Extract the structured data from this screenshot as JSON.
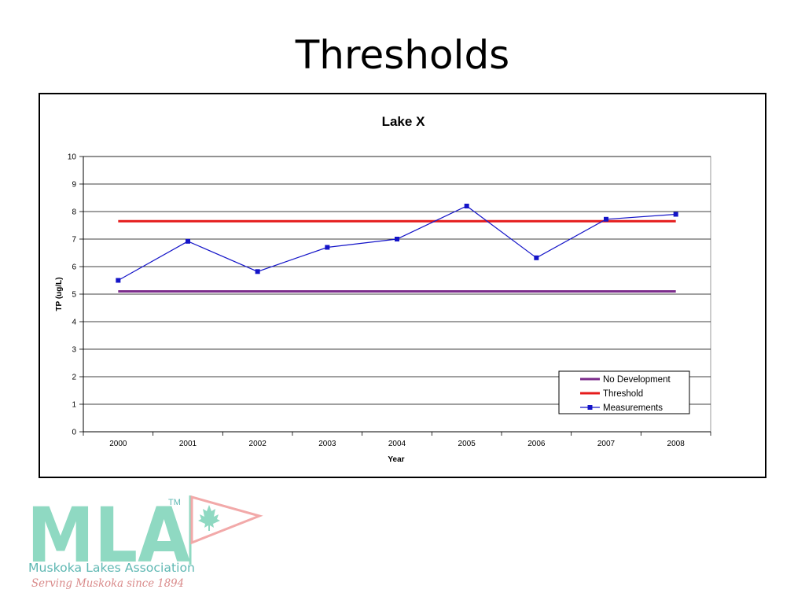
{
  "slide": {
    "title": "Thresholds"
  },
  "chart_data": {
    "type": "line",
    "title": "Lake X",
    "xlabel": "Year",
    "ylabel": "TP (ug/L)",
    "categories": [
      "2000",
      "2001",
      "2002",
      "2003",
      "2004",
      "2005",
      "2006",
      "2007",
      "2008"
    ],
    "yticks": [
      "0",
      "1",
      "2",
      "3",
      "4",
      "5",
      "6",
      "7",
      "8",
      "9",
      "10"
    ],
    "ylim": [
      0,
      10
    ],
    "grid": true,
    "legend": "bottom-right",
    "series": [
      {
        "name": "No Development",
        "color": "#7B2C8B",
        "marker": "none",
        "values": [
          5.1,
          5.1,
          5.1,
          5.1,
          5.1,
          5.1,
          5.1,
          5.1,
          5.1
        ]
      },
      {
        "name": "Threshold",
        "color": "#E51B1B",
        "marker": "none",
        "values": [
          7.65,
          7.65,
          7.65,
          7.65,
          7.65,
          7.65,
          7.65,
          7.65,
          7.65
        ]
      },
      {
        "name": "Measurements",
        "color": "#1414C8",
        "marker": "square",
        "values": [
          5.5,
          6.92,
          5.82,
          6.7,
          7.0,
          8.2,
          6.32,
          7.72,
          7.9
        ]
      }
    ]
  },
  "logo": {
    "letters": "MLA",
    "tm": "TM",
    "org_name": "Muskoka Lakes Association",
    "tagline": "Serving Muskoka since 1894",
    "primary_color": "#8FD9C2",
    "secondary_color": "#F2A9A9",
    "text_color": "#5FB8B3",
    "tagline_color": "#D98A8A"
  }
}
